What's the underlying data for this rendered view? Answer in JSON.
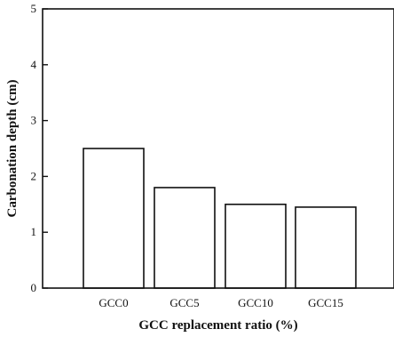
{
  "chart_data": {
    "type": "bar",
    "categories": [
      "GCC0",
      "GCC5",
      "GCC10",
      "GCC15"
    ],
    "values": [
      2.5,
      1.8,
      1.5,
      1.45
    ],
    "xlabel": "GCC replacement ratio (%)",
    "ylabel": "Carbonation depth (cm)",
    "ylim": [
      0,
      5
    ],
    "yticks": [
      0,
      1,
      2,
      3,
      4,
      5
    ],
    "grid": false,
    "legend": "none"
  }
}
